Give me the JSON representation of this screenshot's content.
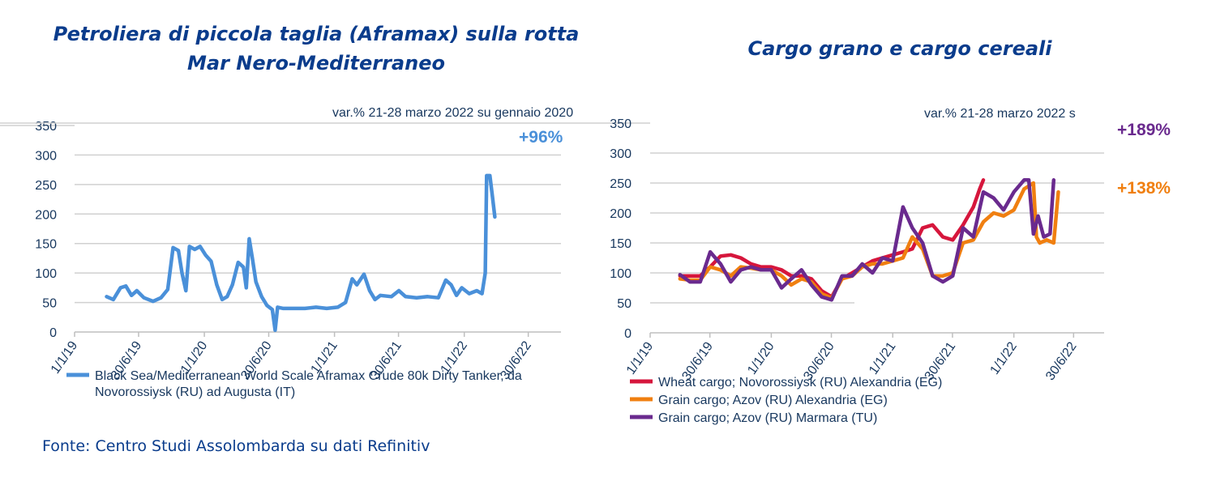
{
  "source": "Fonte: Centro Studi Assolombarda su dati Refinitiv",
  "colors": {
    "title": "#0a3c8c",
    "aframax": "#4a90d9",
    "wheat": "#d6163c",
    "grain_eg": "#f07f10",
    "grain_tu": "#6a2a8e"
  },
  "chart_data": [
    {
      "type": "line",
      "title": "Petroliera di piccola taglia (Aframax) sulla rotta Mar Nero-Mediterraneo",
      "annotation": "var.% 21-28 marzo 2022 su gennaio 2020",
      "change_labels": [
        {
          "text": "+96%",
          "color": "#4a90d9"
        }
      ],
      "ylim": [
        0,
        350
      ],
      "yticks": [
        0,
        50,
        100,
        150,
        200,
        250,
        300,
        350
      ],
      "xticks": [
        "1/1/19",
        "30/6/19",
        "1/1/20",
        "30/6/20",
        "1/1/21",
        "30/6/21",
        "1/1/22",
        "30/6/22"
      ],
      "legend_position": "bottom",
      "series": [
        {
          "name": "Black Sea/Mediterranean World Scale Aframax Crude 80k Dirty Tanker, da Novorossiysk (RU) ad Augusta (IT)",
          "color": "#4a90d9",
          "points": [
            [
              "2019-04-01",
              60
            ],
            [
              "2019-04-20",
              55
            ],
            [
              "2019-05-10",
              75
            ],
            [
              "2019-05-25",
              78
            ],
            [
              "2019-06-10",
              62
            ],
            [
              "2019-06-25",
              70
            ],
            [
              "2019-07-15",
              58
            ],
            [
              "2019-08-10",
              52
            ],
            [
              "2019-09-01",
              58
            ],
            [
              "2019-09-20",
              72
            ],
            [
              "2019-10-05",
              143
            ],
            [
              "2019-10-20",
              138
            ],
            [
              "2019-10-30",
              100
            ],
            [
              "2019-11-10",
              70
            ],
            [
              "2019-11-20",
              145
            ],
            [
              "2019-12-05",
              140
            ],
            [
              "2019-12-20",
              145
            ],
            [
              "2020-01-05",
              130
            ],
            [
              "2020-01-20",
              120
            ],
            [
              "2020-02-05",
              80
            ],
            [
              "2020-02-20",
              55
            ],
            [
              "2020-03-05",
              60
            ],
            [
              "2020-03-20",
              80
            ],
            [
              "2020-04-05",
              118
            ],
            [
              "2020-04-20",
              110
            ],
            [
              "2020-04-28",
              75
            ],
            [
              "2020-05-06",
              158
            ],
            [
              "2020-05-15",
              125
            ],
            [
              "2020-05-25",
              85
            ],
            [
              "2020-06-10",
              60
            ],
            [
              "2020-06-25",
              45
            ],
            [
              "2020-07-10",
              38
            ],
            [
              "2020-07-18",
              3
            ],
            [
              "2020-07-25",
              42
            ],
            [
              "2020-08-10",
              40
            ],
            [
              "2020-09-10",
              40
            ],
            [
              "2020-10-10",
              40
            ],
            [
              "2020-11-10",
              42
            ],
            [
              "2020-12-10",
              40
            ],
            [
              "2021-01-10",
              42
            ],
            [
              "2021-02-01",
              50
            ],
            [
              "2021-02-20",
              90
            ],
            [
              "2021-03-05",
              80
            ],
            [
              "2021-03-25",
              98
            ],
            [
              "2021-04-10",
              70
            ],
            [
              "2021-04-25",
              55
            ],
            [
              "2021-05-10",
              62
            ],
            [
              "2021-06-10",
              60
            ],
            [
              "2021-07-01",
              70
            ],
            [
              "2021-07-20",
              60
            ],
            [
              "2021-08-20",
              58
            ],
            [
              "2021-09-20",
              60
            ],
            [
              "2021-10-20",
              58
            ],
            [
              "2021-11-10",
              88
            ],
            [
              "2021-11-25",
              80
            ],
            [
              "2021-12-10",
              62
            ],
            [
              "2021-12-25",
              75
            ],
            [
              "2022-01-15",
              65
            ],
            [
              "2022-02-05",
              70
            ],
            [
              "2022-02-20",
              65
            ],
            [
              "2022-03-01",
              100
            ],
            [
              "2022-03-05",
              265
            ],
            [
              "2022-03-14",
              265
            ],
            [
              "2022-03-21",
              230
            ],
            [
              "2022-03-28",
              195
            ]
          ]
        }
      ]
    },
    {
      "type": "line",
      "title": "Cargo grano e cargo cereali",
      "annotation": "var.% 21-28 marzo 2022 s",
      "change_labels": [
        {
          "text": "+189%",
          "color": "#6a2a8e"
        },
        {
          "text": "+138%",
          "color": "#f07f10"
        }
      ],
      "ylim": [
        0,
        350
      ],
      "yticks": [
        0,
        50,
        100,
        150,
        200,
        250,
        300,
        350
      ],
      "xticks": [
        "1/1/19",
        "30/6/19",
        "1/1/20",
        "30/6/20",
        "1/1/21",
        "30/6/21",
        "1/1/22",
        "30/6/22"
      ],
      "legend_position": "bottom",
      "series": [
        {
          "name": "Wheat cargo; Novorossiysk (RU) Alexandria (EG)",
          "color": "#d6163c",
          "points": [
            [
              "2019-04-01",
              95
            ],
            [
              "2019-05-01",
              95
            ],
            [
              "2019-06-01",
              95
            ],
            [
              "2019-07-01",
              110
            ],
            [
              "2019-08-01",
              128
            ],
            [
              "2019-09-01",
              130
            ],
            [
              "2019-10-01",
              125
            ],
            [
              "2019-11-01",
              115
            ],
            [
              "2019-12-01",
              110
            ],
            [
              "2020-01-01",
              110
            ],
            [
              "2020-02-01",
              105
            ],
            [
              "2020-03-01",
              95
            ],
            [
              "2020-04-01",
              95
            ],
            [
              "2020-05-01",
              90
            ],
            [
              "2020-06-01",
              70
            ],
            [
              "2020-07-01",
              60
            ],
            [
              "2020-08-01",
              90
            ],
            [
              "2020-09-01",
              100
            ],
            [
              "2020-10-01",
              110
            ],
            [
              "2020-11-01",
              120
            ],
            [
              "2020-12-01",
              125
            ],
            [
              "2021-01-01",
              130
            ],
            [
              "2021-02-01",
              135
            ],
            [
              "2021-03-01",
              140
            ],
            [
              "2021-04-01",
              175
            ],
            [
              "2021-05-01",
              180
            ],
            [
              "2021-06-01",
              160
            ],
            [
              "2021-07-01",
              155
            ],
            [
              "2021-08-01",
              180
            ],
            [
              "2021-09-01",
              210
            ],
            [
              "2021-09-20",
              240
            ],
            [
              "2021-10-01",
              255
            ]
          ]
        },
        {
          "name": "Grain cargo; Azov (RU) Alexandria (EG)",
          "color": "#f07f10",
          "points": [
            [
              "2019-04-01",
              90
            ],
            [
              "2019-05-01",
              88
            ],
            [
              "2019-06-01",
              88
            ],
            [
              "2019-07-01",
              110
            ],
            [
              "2019-08-01",
              105
            ],
            [
              "2019-09-01",
              95
            ],
            [
              "2019-10-01",
              110
            ],
            [
              "2019-11-01",
              108
            ],
            [
              "2019-12-01",
              105
            ],
            [
              "2020-01-01",
              105
            ],
            [
              "2020-02-01",
              95
            ],
            [
              "2020-03-01",
              80
            ],
            [
              "2020-04-01",
              90
            ],
            [
              "2020-05-01",
              85
            ],
            [
              "2020-06-01",
              65
            ],
            [
              "2020-07-01",
              58
            ],
            [
              "2020-08-01",
              90
            ],
            [
              "2020-09-01",
              95
            ],
            [
              "2020-10-01",
              110
            ],
            [
              "2020-11-01",
              115
            ],
            [
              "2020-12-01",
              115
            ],
            [
              "2021-01-01",
              120
            ],
            [
              "2021-02-01",
              125
            ],
            [
              "2021-03-01",
              160
            ],
            [
              "2021-04-01",
              140
            ],
            [
              "2021-05-01",
              95
            ],
            [
              "2021-06-01",
              95
            ],
            [
              "2021-07-01",
              100
            ],
            [
              "2021-08-01",
              150
            ],
            [
              "2021-09-01",
              155
            ],
            [
              "2021-10-01",
              185
            ],
            [
              "2021-11-01",
              200
            ],
            [
              "2021-12-01",
              195
            ],
            [
              "2022-01-01",
              205
            ],
            [
              "2022-02-01",
              240
            ],
            [
              "2022-03-01",
              250
            ],
            [
              "2022-03-10",
              160
            ],
            [
              "2022-03-20",
              150
            ],
            [
              "2022-04-10",
              155
            ],
            [
              "2022-05-01",
              150
            ],
            [
              "2022-05-15",
              235
            ]
          ]
        },
        {
          "name": "Grain cargo; Azov (RU) Marmara (TU)",
          "color": "#6a2a8e",
          "points": [
            [
              "2019-04-01",
              97
            ],
            [
              "2019-05-01",
              85
            ],
            [
              "2019-06-01",
              85
            ],
            [
              "2019-07-01",
              135
            ],
            [
              "2019-08-01",
              115
            ],
            [
              "2019-09-01",
              85
            ],
            [
              "2019-10-01",
              105
            ],
            [
              "2019-11-01",
              110
            ],
            [
              "2019-12-01",
              105
            ],
            [
              "2020-01-01",
              105
            ],
            [
              "2020-02-01",
              75
            ],
            [
              "2020-03-01",
              90
            ],
            [
              "2020-04-01",
              105
            ],
            [
              "2020-05-01",
              80
            ],
            [
              "2020-06-01",
              60
            ],
            [
              "2020-07-01",
              55
            ],
            [
              "2020-08-01",
              95
            ],
            [
              "2020-09-01",
              95
            ],
            [
              "2020-10-01",
              115
            ],
            [
              "2020-11-01",
              100
            ],
            [
              "2020-12-01",
              125
            ],
            [
              "2021-01-01",
              120
            ],
            [
              "2021-02-01",
              210
            ],
            [
              "2021-03-01",
              175
            ],
            [
              "2021-04-01",
              150
            ],
            [
              "2021-05-01",
              95
            ],
            [
              "2021-06-01",
              85
            ],
            [
              "2021-07-01",
              95
            ],
            [
              "2021-08-01",
              175
            ],
            [
              "2021-09-01",
              160
            ],
            [
              "2021-10-01",
              235
            ],
            [
              "2021-11-01",
              225
            ],
            [
              "2021-12-01",
              205
            ],
            [
              "2022-01-01",
              235
            ],
            [
              "2022-02-01",
              255
            ],
            [
              "2022-02-15",
              255
            ],
            [
              "2022-03-01",
              165
            ],
            [
              "2022-03-15",
              195
            ],
            [
              "2022-04-01",
              160
            ],
            [
              "2022-04-20",
              165
            ],
            [
              "2022-05-01",
              255
            ]
          ]
        }
      ]
    }
  ]
}
